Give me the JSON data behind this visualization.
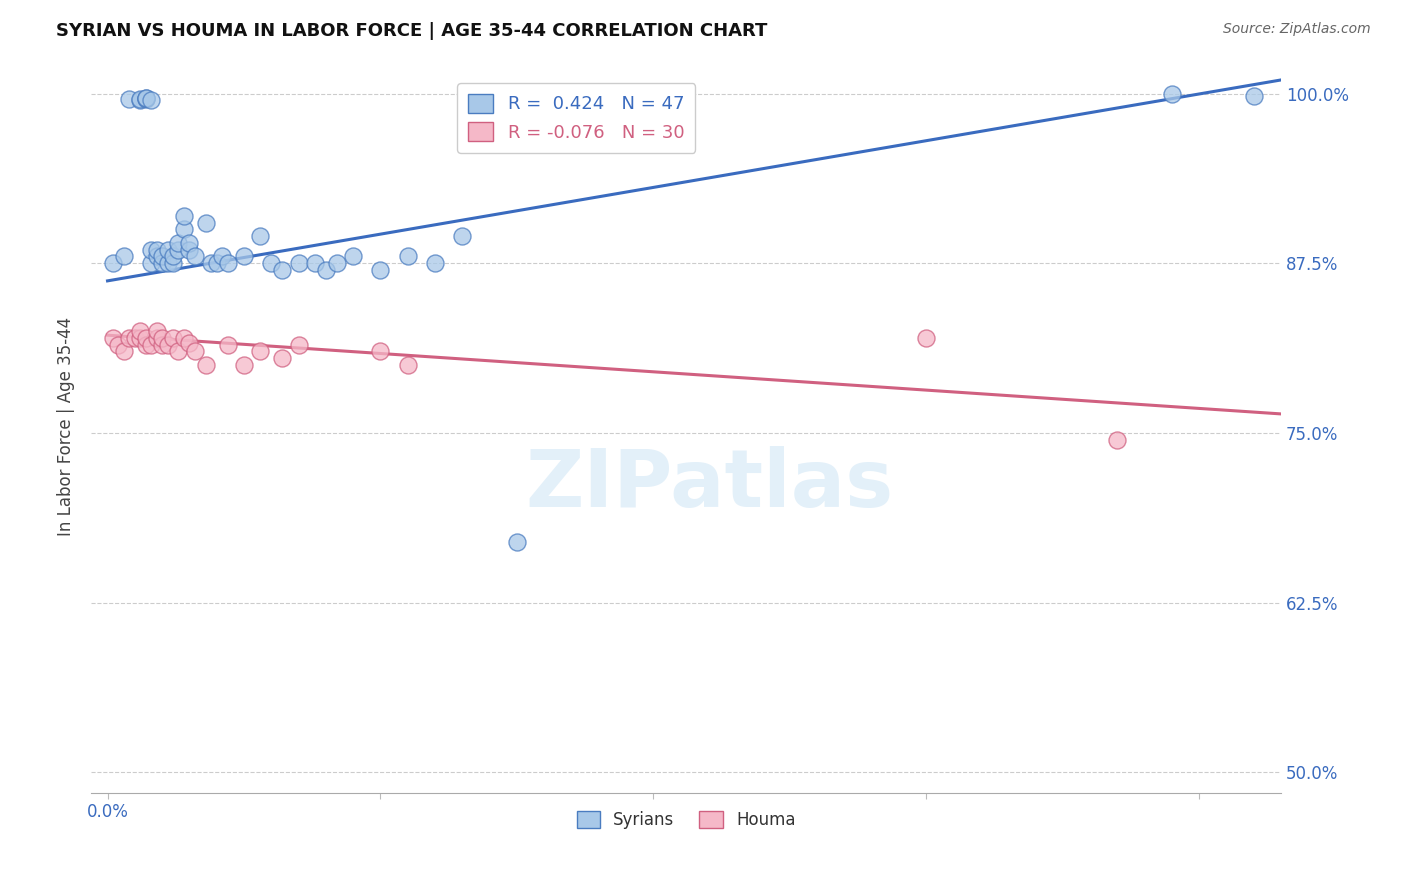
{
  "title": "SYRIAN VS HOUMA IN LABOR FORCE | AGE 35-44 CORRELATION CHART",
  "source": "Source: ZipAtlas.com",
  "ylabel": "In Labor Force | Age 35-44",
  "xlim": [
    -0.003,
    0.215
  ],
  "ylim": [
    0.485,
    1.025
  ],
  "yticks": [
    0.5,
    0.625,
    0.75,
    0.875,
    1.0
  ],
  "ytick_labels": [
    "50.0%",
    "62.5%",
    "75.0%",
    "87.5%",
    "100.0%"
  ],
  "xtick_val": 0.0,
  "xtick_label": "0.0%",
  "legend_blue_r": " 0.424",
  "legend_blue_n": "47",
  "legend_pink_r": "-0.076",
  "legend_pink_n": "30",
  "blue_fill": "#a8c8e8",
  "pink_fill": "#f5b8c8",
  "blue_edge": "#4a7cc0",
  "pink_edge": "#d06080",
  "blue_line": "#3a6bbf",
  "pink_line": "#d06080",
  "watermark": "ZIPatlas",
  "syrians_x": [
    0.001,
    0.003,
    0.004,
    0.006,
    0.006,
    0.007,
    0.007,
    0.007,
    0.008,
    0.008,
    0.008,
    0.009,
    0.009,
    0.01,
    0.01,
    0.011,
    0.011,
    0.012,
    0.012,
    0.013,
    0.013,
    0.014,
    0.014,
    0.015,
    0.015,
    0.016,
    0.018,
    0.019,
    0.02,
    0.021,
    0.022,
    0.025,
    0.028,
    0.03,
    0.032,
    0.035,
    0.038,
    0.04,
    0.042,
    0.045,
    0.05,
    0.055,
    0.06,
    0.065,
    0.075,
    0.195,
    0.21
  ],
  "syrians_y": [
    0.875,
    0.88,
    0.996,
    0.995,
    0.996,
    0.996,
    0.997,
    0.997,
    0.875,
    0.885,
    0.995,
    0.88,
    0.885,
    0.875,
    0.88,
    0.875,
    0.885,
    0.875,
    0.88,
    0.885,
    0.89,
    0.9,
    0.91,
    0.885,
    0.89,
    0.88,
    0.905,
    0.875,
    0.875,
    0.88,
    0.875,
    0.88,
    0.895,
    0.875,
    0.87,
    0.875,
    0.875,
    0.87,
    0.875,
    0.88,
    0.87,
    0.88,
    0.875,
    0.895,
    0.67,
    1.0,
    0.998
  ],
  "houma_x": [
    0.001,
    0.002,
    0.003,
    0.004,
    0.005,
    0.006,
    0.006,
    0.007,
    0.007,
    0.008,
    0.009,
    0.009,
    0.01,
    0.01,
    0.011,
    0.012,
    0.013,
    0.014,
    0.015,
    0.016,
    0.018,
    0.022,
    0.025,
    0.028,
    0.032,
    0.035,
    0.05,
    0.055,
    0.15,
    0.185
  ],
  "houma_y": [
    0.82,
    0.815,
    0.81,
    0.82,
    0.82,
    0.82,
    0.825,
    0.815,
    0.82,
    0.815,
    0.82,
    0.825,
    0.815,
    0.82,
    0.815,
    0.82,
    0.81,
    0.82,
    0.816,
    0.81,
    0.8,
    0.815,
    0.8,
    0.81,
    0.805,
    0.815,
    0.81,
    0.8,
    0.82,
    0.745
  ],
  "blue_trend_x": [
    0.0,
    0.215
  ],
  "blue_trend_y": [
    0.862,
    1.01
  ],
  "pink_trend_x": [
    0.0,
    0.215
  ],
  "pink_trend_y": [
    0.822,
    0.764
  ]
}
